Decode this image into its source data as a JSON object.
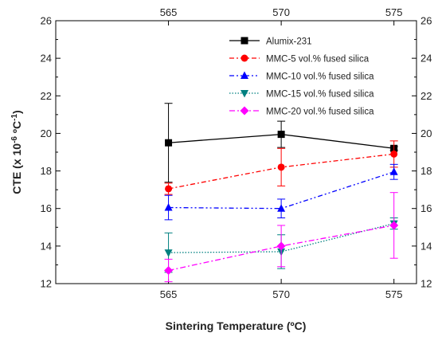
{
  "chart_data": {
    "type": "line",
    "xlabel": "Sintering Temperature (ºC)",
    "ylabel": {
      "base": "CTE (x 10",
      "exp1": "-6",
      "mid": " ºC",
      "exp2": "-1",
      "end": ")"
    },
    "x": [
      565,
      570,
      575
    ],
    "xlim": [
      560,
      576
    ],
    "ylim": [
      12,
      26
    ],
    "x_ticks": [
      565,
      570,
      575
    ],
    "y_ticks": [
      12,
      14,
      16,
      18,
      20,
      22,
      24,
      26
    ],
    "grid": false,
    "legend_position": "top-right",
    "series": [
      {
        "name": "Alumix-231",
        "values": [
          19.5,
          19.95,
          19.2
        ],
        "err": [
          2.1,
          0.7,
          0.1
        ],
        "color": "#000000",
        "dash": "",
        "marker": "square"
      },
      {
        "name": "MMC-5 vol.% fused silica",
        "values": [
          17.05,
          18.2,
          18.9
        ],
        "err": [
          0.3,
          1.0,
          0.7
        ],
        "color": "#ff0000",
        "dash": "6,3,2,3",
        "marker": "circle"
      },
      {
        "name": "MMC-10 vol.% fused silica",
        "values": [
          16.05,
          16.0,
          17.95
        ],
        "err": [
          0.65,
          0.5,
          0.4
        ],
        "color": "#0000ff",
        "dash": "6,3,2,3,2,3",
        "marker": "triangle-up"
      },
      {
        "name": "MMC-15 vol.% fused silica",
        "values": [
          13.65,
          13.7,
          15.2
        ],
        "err": [
          1.05,
          0.9,
          0.3
        ],
        "color": "#008080",
        "dash": "1.5,2",
        "marker": "triangle-down"
      },
      {
        "name": "MMC-20 vol.% fused silica",
        "values": [
          12.7,
          14.0,
          15.1
        ],
        "err": [
          0.6,
          1.1,
          1.75
        ],
        "color": "#ff00ff",
        "dash": "7,3,2,3",
        "marker": "diamond"
      }
    ]
  }
}
